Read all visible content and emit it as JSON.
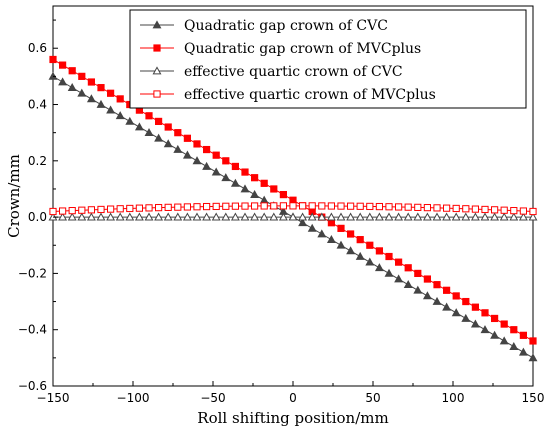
{
  "chart_data": {
    "type": "scatter",
    "xlabel": "Roll shifting position/mm",
    "ylabel": "Crown/mm",
    "xlim": [
      -150,
      150
    ],
    "ylim": [
      -0.6,
      0.75
    ],
    "x_ticks": [
      -150,
      -100,
      -50,
      0,
      50,
      100,
      150
    ],
    "x_tick_labels": [
      "−150",
      "−100",
      "−50",
      "0",
      "50",
      "100",
      "150"
    ],
    "y_ticks": [
      -0.6,
      -0.4,
      -0.2,
      0.0,
      0.2,
      0.4,
      0.6
    ],
    "y_tick_labels": [
      "−0.6",
      "−0.4",
      "−0.2",
      "0.0",
      "0.2",
      "0.4",
      "0.6"
    ],
    "grid": false,
    "legend_position": "top-right",
    "x_step": 6,
    "series": [
      {
        "name": "Quadratic gap crown of CVC",
        "color": "#444444",
        "marker": "filled-triangle",
        "line": true,
        "x_start": -150,
        "x_end": 150,
        "y_start": 0.5,
        "y_end": -0.5
      },
      {
        "name": "Quadratic gap crown of MVCplus",
        "color": "#ff0000",
        "marker": "filled-square",
        "line": true,
        "x_start": -150,
        "x_end": 150,
        "y_start": 0.56,
        "y_end": -0.44
      },
      {
        "name": "effective quartic crown of CVC",
        "color": "#444444",
        "marker": "open-triangle",
        "line": true,
        "x_start": -150,
        "x_end": 150,
        "y_start": 0.0,
        "y_end": 0.0
      },
      {
        "name": "effective quartic crown of MVCplus",
        "color": "#ff0000",
        "marker": "open-square",
        "line": true,
        "x_start": -150,
        "x_end": 150,
        "y_start": 0.02,
        "y_mid": 0.04,
        "y_end": 0.02
      }
    ]
  }
}
